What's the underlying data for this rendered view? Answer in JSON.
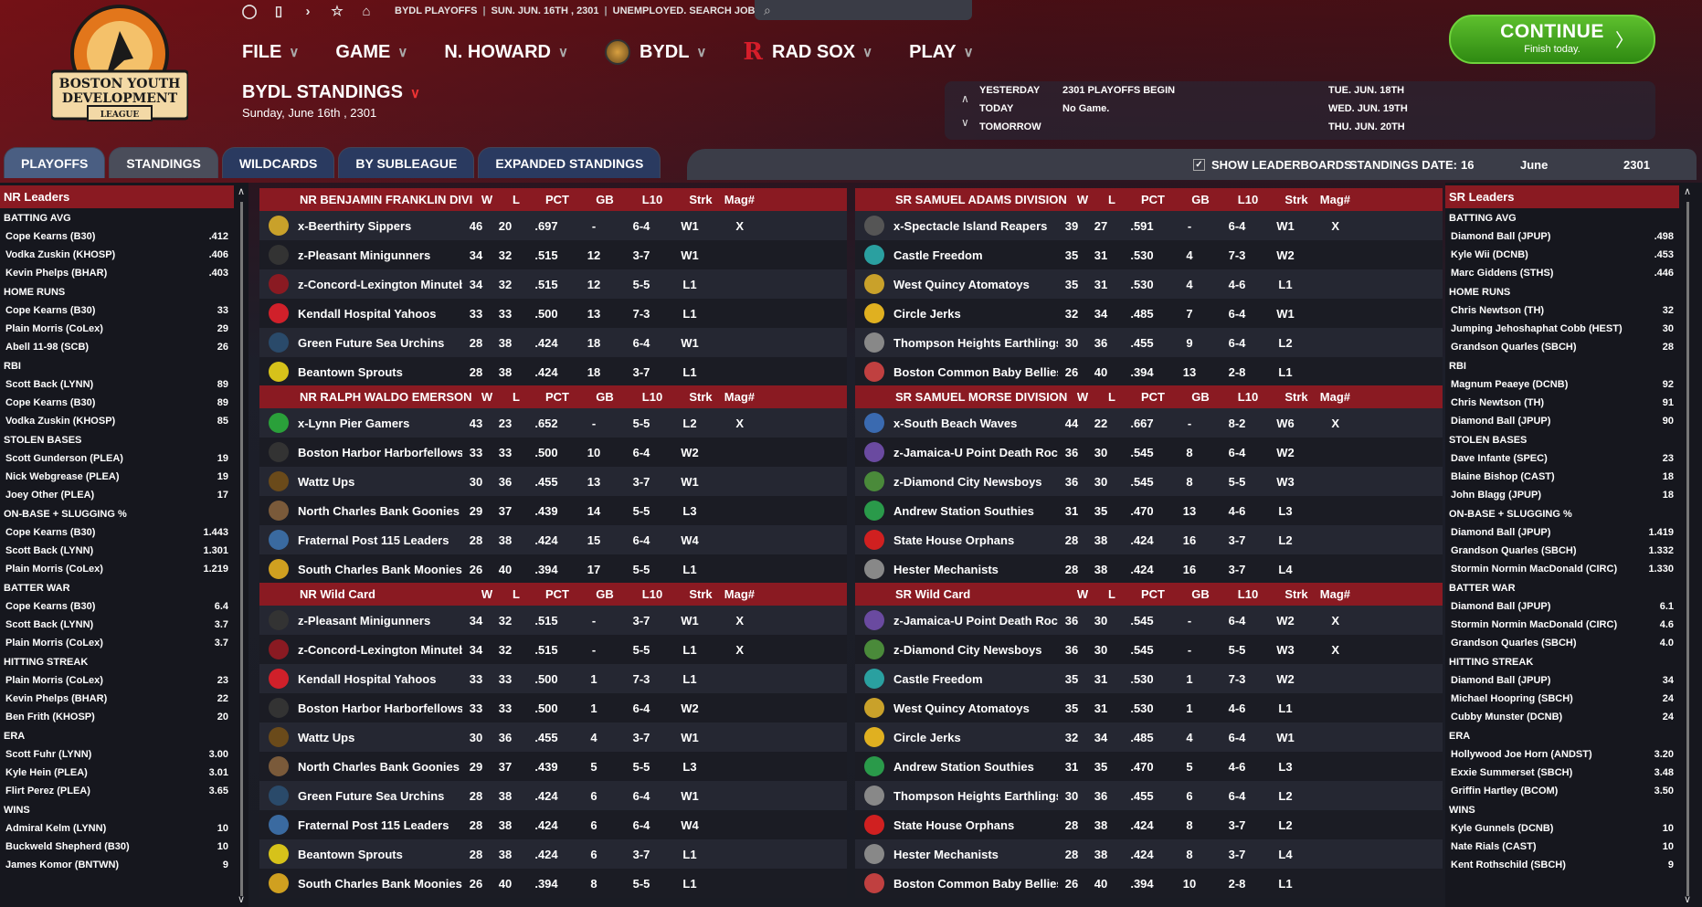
{
  "topbar": {
    "league": "BYDL PLAYOFFS",
    "date": "SUN. JUN. 16TH , 2301",
    "status": "UNEMPLOYED. SEARCH JOBS...",
    "search_placeholder": ""
  },
  "logo": {
    "line1": "BOSTON YOUTH",
    "line2": "DEVELOPMENT",
    "line3": "LEAGUE"
  },
  "menu": {
    "file": "FILE",
    "game": "GAME",
    "manager": "N. HOWARD",
    "league": "BYDL",
    "team": "RAD SOX",
    "play": "PLAY"
  },
  "continue": {
    "label": "CONTINUE",
    "sub": "Finish today."
  },
  "page": {
    "title": "BYDL STANDINGS",
    "date": "Sunday, June 16th , 2301"
  },
  "calendar": {
    "yesterday_label": "YESTERDAY",
    "yesterday_text": "2301 PLAYOFFS BEGIN",
    "today_label": "TODAY",
    "today_text": "No Game.",
    "tomorrow_label": "TOMORROW",
    "d1": "TUE. JUN. 18TH",
    "d2": "WED. JUN. 19TH",
    "d3": "THU. JUN. 20TH"
  },
  "tabs": [
    "PLAYOFFS",
    "STANDINGS",
    "WILDCARDS",
    "BY SUBLEAGUE",
    "EXPANDED STANDINGS"
  ],
  "options": {
    "show_leaderboards": "SHOW LEADERBOARDS",
    "standings_date": "STANDINGS DATE:",
    "day": "16",
    "month": "June",
    "year": "2301"
  },
  "cols": [
    "W",
    "L",
    "PCT",
    "GB",
    "L10",
    "Strk",
    "Mag#"
  ],
  "nr_leaders": {
    "title": "NR Leaders",
    "cats": [
      {
        "name": "BATTING AVG",
        "items": [
          [
            "Cope Kearns (B30)",
            ".412"
          ],
          [
            "Vodka Zuskin (KHOSP)",
            ".406"
          ],
          [
            "Kevin Phelps (BHAR)",
            ".403"
          ]
        ]
      },
      {
        "name": "HOME RUNS",
        "items": [
          [
            "Cope Kearns (B30)",
            "33"
          ],
          [
            "Plain Morris (CoLex)",
            "29"
          ],
          [
            "Abell 11-98 (SCB)",
            "26"
          ]
        ]
      },
      {
        "name": "RBI",
        "items": [
          [
            "Scott Back (LYNN)",
            "89"
          ],
          [
            "Cope Kearns (B30)",
            "89"
          ],
          [
            "Vodka Zuskin (KHOSP)",
            "85"
          ]
        ]
      },
      {
        "name": "STOLEN BASES",
        "items": [
          [
            "Scott Gunderson (PLEA)",
            "19"
          ],
          [
            "Nick Webgrease (PLEA)",
            "19"
          ],
          [
            "Joey Other (PLEA)",
            "17"
          ]
        ]
      },
      {
        "name": "ON-BASE + SLUGGING %",
        "items": [
          [
            "Cope Kearns (B30)",
            "1.443"
          ],
          [
            "Scott Back (LYNN)",
            "1.301"
          ],
          [
            "Plain Morris (CoLex)",
            "1.219"
          ]
        ]
      },
      {
        "name": "BATTER WAR",
        "items": [
          [
            "Cope Kearns (B30)",
            "6.4"
          ],
          [
            "Scott Back (LYNN)",
            "3.7"
          ],
          [
            "Plain Morris (CoLex)",
            "3.7"
          ]
        ]
      },
      {
        "name": "HITTING STREAK",
        "items": [
          [
            "Plain Morris (CoLex)",
            "23"
          ],
          [
            "Kevin Phelps (BHAR)",
            "22"
          ],
          [
            "Ben Frith (KHOSP)",
            "20"
          ]
        ]
      },
      {
        "name": "ERA",
        "items": [
          [
            "Scott Fuhr (LYNN)",
            "3.00"
          ],
          [
            "Kyle Hein (PLEA)",
            "3.01"
          ],
          [
            "Flirt Perez (PLEA)",
            "3.65"
          ]
        ]
      },
      {
        "name": "WINS",
        "items": [
          [
            "Admiral Kelm (LYNN)",
            "10"
          ],
          [
            "Buckweld Shepherd (B30)",
            "10"
          ],
          [
            "James Komor (BNTWN)",
            "9"
          ]
        ]
      }
    ]
  },
  "sr_leaders": {
    "title": "SR Leaders",
    "cats": [
      {
        "name": "BATTING AVG",
        "items": [
          [
            "Diamond Ball (JPUP)",
            ".498"
          ],
          [
            "Kyle Wii (DCNB)",
            ".453"
          ],
          [
            "Marc Giddens (STHS)",
            ".446"
          ]
        ]
      },
      {
        "name": "HOME RUNS",
        "items": [
          [
            "Chris Newtson (TH)",
            "32"
          ],
          [
            "Jumping Jehoshaphat Cobb (HEST)",
            "30"
          ],
          [
            "Grandson Quarles (SBCH)",
            "28"
          ]
        ]
      },
      {
        "name": "RBI",
        "items": [
          [
            "Magnum Peaeye (DCNB)",
            "92"
          ],
          [
            "Chris Newtson (TH)",
            "91"
          ],
          [
            "Diamond Ball (JPUP)",
            "90"
          ]
        ]
      },
      {
        "name": "STOLEN BASES",
        "items": [
          [
            "Dave Infante (SPEC)",
            "23"
          ],
          [
            "Blaine Bishop (CAST)",
            "18"
          ],
          [
            "John Blagg (JPUP)",
            "18"
          ]
        ]
      },
      {
        "name": "ON-BASE + SLUGGING %",
        "items": [
          [
            "Diamond Ball (JPUP)",
            "1.419"
          ],
          [
            "Grandson Quarles (SBCH)",
            "1.332"
          ],
          [
            "Stormin Normin MacDonald (CIRC)",
            "1.330"
          ]
        ]
      },
      {
        "name": "BATTER WAR",
        "items": [
          [
            "Diamond Ball (JPUP)",
            "6.1"
          ],
          [
            "Stormin Normin MacDonald (CIRC)",
            "4.6"
          ],
          [
            "Grandson Quarles (SBCH)",
            "4.0"
          ]
        ]
      },
      {
        "name": "HITTING STREAK",
        "items": [
          [
            "Diamond Ball (JPUP)",
            "34"
          ],
          [
            "Michael Hoopring (SBCH)",
            "24"
          ],
          [
            "Cubby Munster (DCNB)",
            "24"
          ]
        ]
      },
      {
        "name": "ERA",
        "items": [
          [
            "Hollywood Joe Horn (ANDST)",
            "3.20"
          ],
          [
            "Exxie Summerset (SBCH)",
            "3.48"
          ],
          [
            "Griffin Hartley (BCOM)",
            "3.50"
          ]
        ]
      },
      {
        "name": "WINS",
        "items": [
          [
            "Kyle Gunnels (DCNB)",
            "10"
          ],
          [
            "Nate Rials (CAST)",
            "10"
          ],
          [
            "Kent Rothschild (SBCH)",
            "9"
          ]
        ]
      }
    ]
  },
  "tables": [
    {
      "title": "NR BENJAMIN FRANKLIN DIVISION",
      "rows": [
        [
          "#c9a12a",
          "x-Beerthirty Sippers",
          "46",
          "20",
          ".697",
          "-",
          "6-4",
          "W1",
          "X"
        ],
        [
          "#333",
          "z-Pleasant Minigunners",
          "34",
          "32",
          ".515",
          "12",
          "3-7",
          "W1",
          ""
        ],
        [
          "#8a1a22",
          "z-Concord-Lexington Minuteboys",
          "34",
          "32",
          ".515",
          "12",
          "5-5",
          "L1",
          ""
        ],
        [
          "#d0202a",
          "Kendall Hospital Yahoos",
          "33",
          "33",
          ".500",
          "13",
          "7-3",
          "L1",
          ""
        ],
        [
          "#2a4a6a",
          "Green Future Sea Urchins",
          "28",
          "38",
          ".424",
          "18",
          "6-4",
          "W1",
          ""
        ],
        [
          "#d6c21a",
          "Beantown Sprouts",
          "28",
          "38",
          ".424",
          "18",
          "3-7",
          "L1",
          ""
        ]
      ]
    },
    {
      "title": "NR RALPH WALDO EMERSON DIVISION",
      "rows": [
        [
          "#2aa03a",
          "x-Lynn Pier Gamers",
          "43",
          "23",
          ".652",
          "-",
          "5-5",
          "L2",
          "X"
        ],
        [
          "#333",
          "Boston Harbor Harborfellows",
          "33",
          "33",
          ".500",
          "10",
          "6-4",
          "W2",
          ""
        ],
        [
          "#6a4a1a",
          "Wattz Ups",
          "30",
          "36",
          ".455",
          "13",
          "3-7",
          "W1",
          ""
        ],
        [
          "#7a5a3a",
          "North Charles Bank Goonies",
          "29",
          "37",
          ".439",
          "14",
          "5-5",
          "L3",
          ""
        ],
        [
          "#3a6aa0",
          "Fraternal Post 115 Leaders",
          "28",
          "38",
          ".424",
          "15",
          "6-4",
          "W4",
          ""
        ],
        [
          "#d0a020",
          "South Charles Bank Moonies",
          "26",
          "40",
          ".394",
          "17",
          "5-5",
          "L1",
          ""
        ]
      ]
    },
    {
      "title": "NR  Wild Card",
      "rows": [
        [
          "#333",
          "z-Pleasant Minigunners",
          "34",
          "32",
          ".515",
          "-",
          "3-7",
          "W1",
          "X"
        ],
        [
          "#8a1a22",
          "z-Concord-Lexington Minuteboys",
          "34",
          "32",
          ".515",
          "-",
          "5-5",
          "L1",
          "X"
        ],
        [
          "#d0202a",
          "Kendall Hospital Yahoos",
          "33",
          "33",
          ".500",
          "1",
          "7-3",
          "L1",
          ""
        ],
        [
          "#333",
          "Boston Harbor Harborfellows",
          "33",
          "33",
          ".500",
          "1",
          "6-4",
          "W2",
          ""
        ],
        [
          "#6a4a1a",
          "Wattz Ups",
          "30",
          "36",
          ".455",
          "4",
          "3-7",
          "W1",
          ""
        ],
        [
          "#7a5a3a",
          "North Charles Bank Goonies",
          "29",
          "37",
          ".439",
          "5",
          "5-5",
          "L3",
          ""
        ],
        [
          "#2a4a6a",
          "Green Future Sea Urchins",
          "28",
          "38",
          ".424",
          "6",
          "6-4",
          "W1",
          ""
        ],
        [
          "#3a6aa0",
          "Fraternal Post 115 Leaders",
          "28",
          "38",
          ".424",
          "6",
          "6-4",
          "W4",
          ""
        ],
        [
          "#d6c21a",
          "Beantown Sprouts",
          "28",
          "38",
          ".424",
          "6",
          "3-7",
          "L1",
          ""
        ],
        [
          "#d0a020",
          "South Charles Bank Moonies",
          "26",
          "40",
          ".394",
          "8",
          "5-5",
          "L1",
          ""
        ]
      ]
    },
    {
      "title": "SR SAMUEL ADAMS DIVISION",
      "rows": [
        [
          "#555",
          "x-Spectacle Island Reapers",
          "39",
          "27",
          ".591",
          "-",
          "6-4",
          "W1",
          "X"
        ],
        [
          "#2aa0a0",
          "Castle Freedom",
          "35",
          "31",
          ".530",
          "4",
          "7-3",
          "W2",
          ""
        ],
        [
          "#c9a12a",
          "West Quincy Atomatoys",
          "35",
          "31",
          ".530",
          "4",
          "4-6",
          "L1",
          ""
        ],
        [
          "#e0b020",
          "Circle Jerks",
          "32",
          "34",
          ".485",
          "7",
          "6-4",
          "W1",
          ""
        ],
        [
          "#888",
          "Thompson Heights Earthlings",
          "30",
          "36",
          ".455",
          "9",
          "6-4",
          "L2",
          ""
        ],
        [
          "#c04040",
          "Boston Common Baby Bellies",
          "26",
          "40",
          ".394",
          "13",
          "2-8",
          "L1",
          ""
        ]
      ]
    },
    {
      "title": "SR SAMUEL MORSE DIVISION",
      "rows": [
        [
          "#3a6ab0",
          "x-South Beach Waves",
          "44",
          "22",
          ".667",
          "-",
          "8-2",
          "W6",
          "X"
        ],
        [
          "#6a4aa0",
          "z-Jamaica-U Point Death Rockets",
          "36",
          "30",
          ".545",
          "8",
          "6-4",
          "W2",
          ""
        ],
        [
          "#4a8a3a",
          "z-Diamond City Newsboys",
          "36",
          "30",
          ".545",
          "8",
          "5-5",
          "W3",
          ""
        ],
        [
          "#2a9a4a",
          "Andrew Station Southies",
          "31",
          "35",
          ".470",
          "13",
          "4-6",
          "L3",
          ""
        ],
        [
          "#d02020",
          "State House Orphans",
          "28",
          "38",
          ".424",
          "16",
          "3-7",
          "L2",
          ""
        ],
        [
          "#888",
          "Hester Mechanists",
          "28",
          "38",
          ".424",
          "16",
          "3-7",
          "L4",
          ""
        ]
      ]
    },
    {
      "title": "SR  Wild Card",
      "rows": [
        [
          "#6a4aa0",
          "z-Jamaica-U Point Death Rockets",
          "36",
          "30",
          ".545",
          "-",
          "6-4",
          "W2",
          "X"
        ],
        [
          "#4a8a3a",
          "z-Diamond City Newsboys",
          "36",
          "30",
          ".545",
          "-",
          "5-5",
          "W3",
          "X"
        ],
        [
          "#2aa0a0",
          "Castle Freedom",
          "35",
          "31",
          ".530",
          "1",
          "7-3",
          "W2",
          ""
        ],
        [
          "#c9a12a",
          "West Quincy Atomatoys",
          "35",
          "31",
          ".530",
          "1",
          "4-6",
          "L1",
          ""
        ],
        [
          "#e0b020",
          "Circle Jerks",
          "32",
          "34",
          ".485",
          "4",
          "6-4",
          "W1",
          ""
        ],
        [
          "#2a9a4a",
          "Andrew Station Southies",
          "31",
          "35",
          ".470",
          "5",
          "4-6",
          "L3",
          ""
        ],
        [
          "#888",
          "Thompson Heights Earthlings",
          "30",
          "36",
          ".455",
          "6",
          "6-4",
          "L2",
          ""
        ],
        [
          "#d02020",
          "State House Orphans",
          "28",
          "38",
          ".424",
          "8",
          "3-7",
          "L2",
          ""
        ],
        [
          "#888",
          "Hester Mechanists",
          "28",
          "38",
          ".424",
          "8",
          "3-7",
          "L4",
          ""
        ],
        [
          "#c04040",
          "Boston Common Baby Bellies",
          "26",
          "40",
          ".394",
          "10",
          "2-8",
          "L1",
          ""
        ]
      ]
    }
  ]
}
